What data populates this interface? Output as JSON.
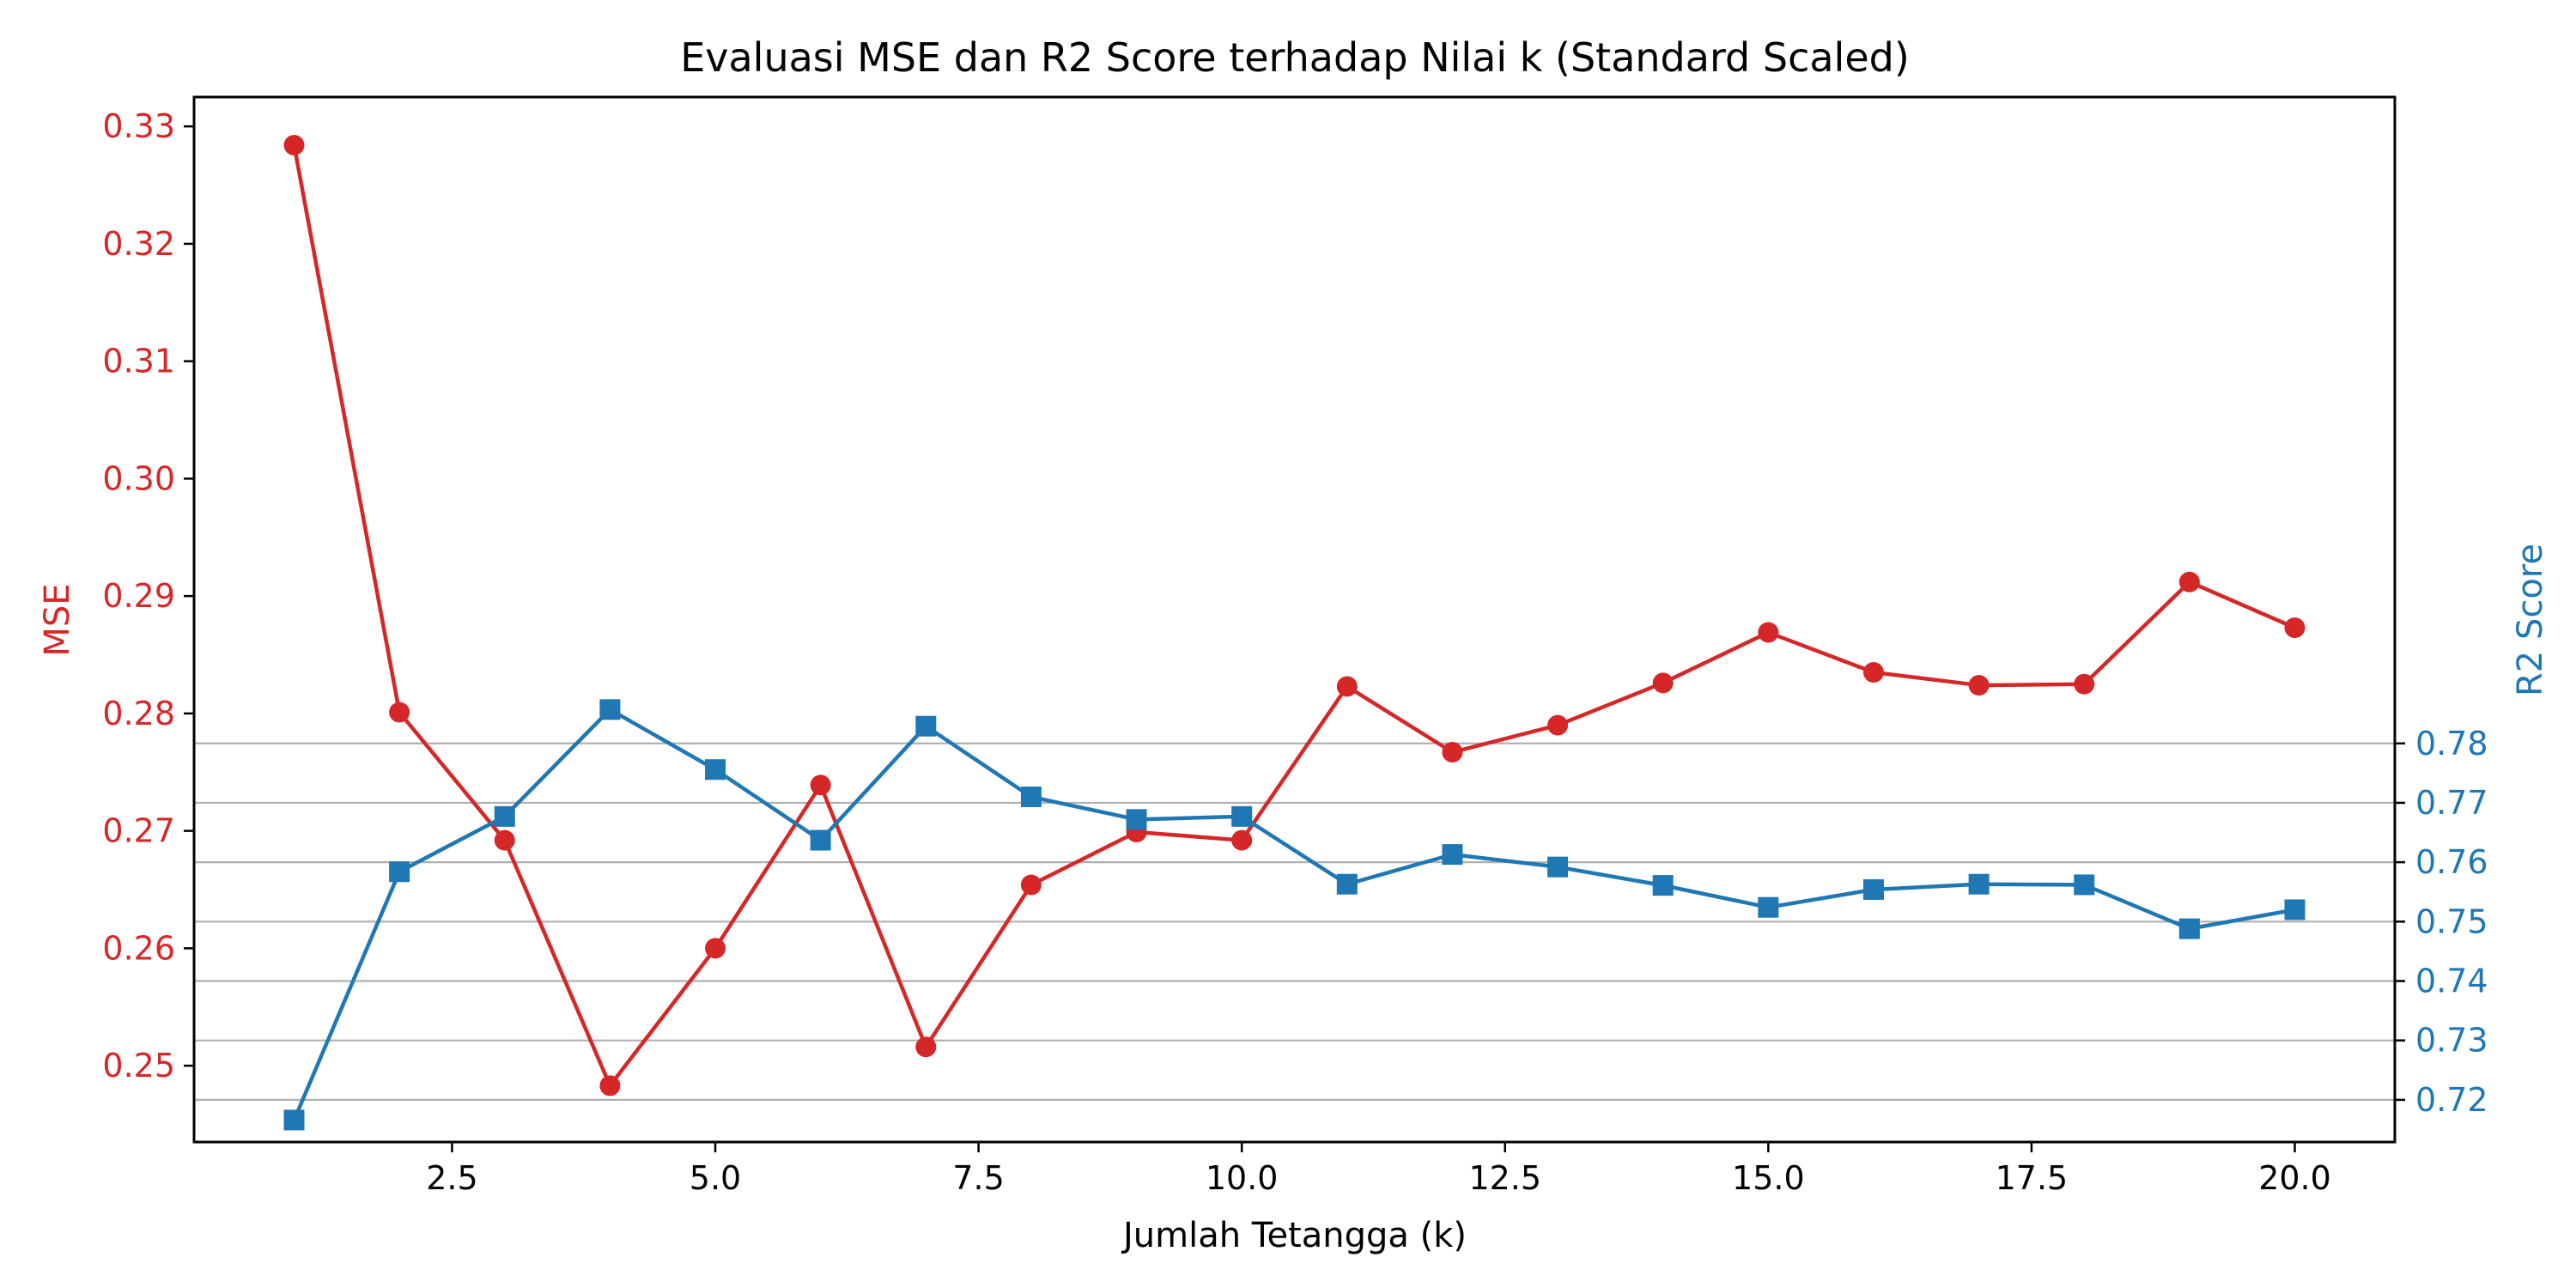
{
  "chart_data": {
    "type": "line",
    "title": "Evaluasi MSE dan R2 Score terhadap Nilai k (Standard Scaled)",
    "xlabel": "Jumlah Tetangga (k)",
    "ylabel_left": "MSE",
    "ylabel_right": "R2 Score",
    "xlim": [
      0.05,
      20.95
    ],
    "ylim_left": [
      0.2435,
      0.3325
    ],
    "ylim_right": [
      0.7129,
      0.8888
    ],
    "x_ticks": [
      2.5,
      5.0,
      7.5,
      10.0,
      12.5,
      15.0,
      17.5,
      20.0
    ],
    "x_tick_labels": [
      "2.5",
      "5.0",
      "7.5",
      "10.0",
      "12.5",
      "15.0",
      "17.5",
      "20.0"
    ],
    "y_left_ticks": [
      0.25,
      0.26,
      0.27,
      0.28,
      0.29,
      0.3,
      0.31,
      0.32,
      0.33
    ],
    "y_left_tick_labels": [
      "0.25",
      "0.26",
      "0.27",
      "0.28",
      "0.29",
      "0.30",
      "0.31",
      "0.32",
      "0.33"
    ],
    "y_right_ticks": [
      0.72,
      0.73,
      0.74,
      0.75,
      0.76,
      0.77,
      0.78
    ],
    "y_right_tick_labels": [
      "0.72",
      "0.73",
      "0.74",
      "0.75",
      "0.76",
      "0.77",
      "0.78"
    ],
    "grid": "horizontal lines at right-axis ticks",
    "x": [
      1,
      2,
      3,
      4,
      5,
      6,
      7,
      8,
      9,
      10,
      11,
      12,
      13,
      14,
      15,
      16,
      17,
      18,
      19,
      20
    ],
    "series": [
      {
        "axis": "left",
        "marker": "circle",
        "color": "#d62728",
        "values": [
          0.3284,
          0.2801,
          0.2692,
          0.2483,
          0.26,
          0.2739,
          0.2516,
          0.2654,
          0.2699,
          0.2692,
          0.2823,
          0.2767,
          0.279,
          0.2826,
          0.2869,
          0.2835,
          0.2824,
          0.2825,
          0.2912,
          0.2873
        ]
      },
      {
        "axis": "right",
        "marker": "square",
        "color": "#1f77b4",
        "values": [
          0.7166,
          0.7584,
          0.7677,
          0.7857,
          0.7756,
          0.7637,
          0.7829,
          0.771,
          0.7672,
          0.7677,
          0.7563,
          0.7613,
          0.7592,
          0.7561,
          0.7524,
          0.7554,
          0.7563,
          0.7562,
          0.7488,
          0.752
        ]
      }
    ]
  }
}
